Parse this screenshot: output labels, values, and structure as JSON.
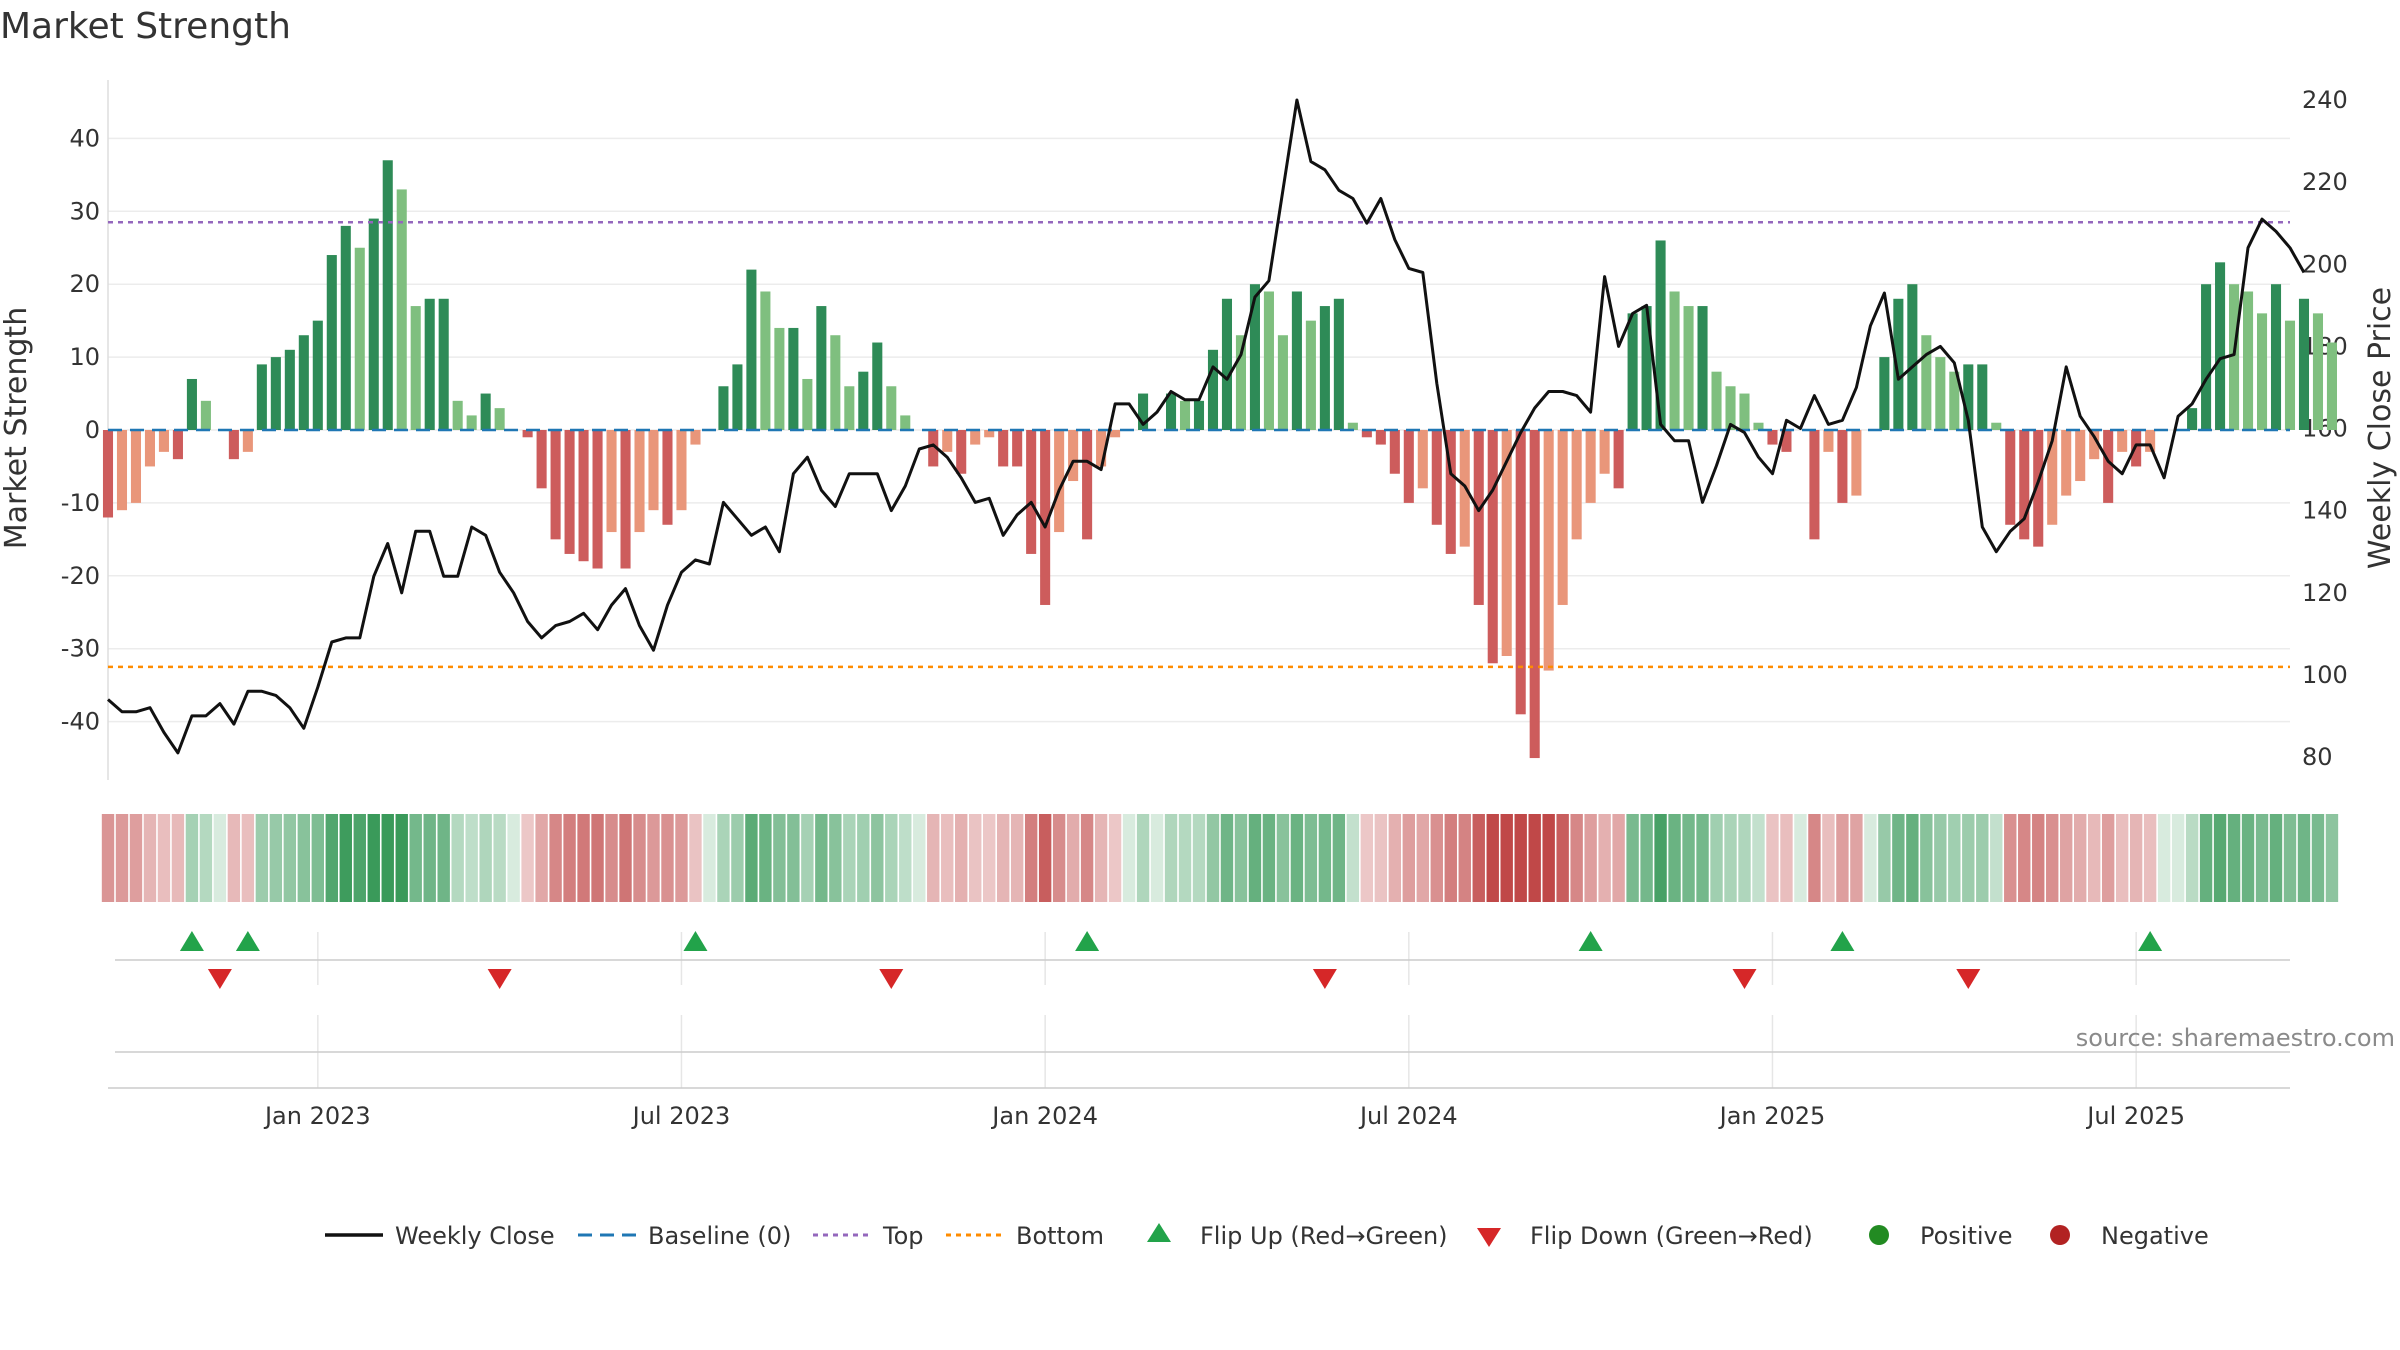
{
  "title": "Market Strength",
  "source": "source: sharemaestro.com",
  "colors": {
    "strong_green": "#2e8b57",
    "light_green": "#7fbf7f",
    "strong_red": "#cd5c5c",
    "light_red": "#e9967a",
    "close_line": "#111111",
    "baseline": "#1f77b4",
    "top": "#9467bd",
    "bottom": "#ff8c00",
    "flip_up": "#22a34a",
    "flip_down": "#d62728",
    "positive": "#228b22",
    "negative": "#b22222"
  },
  "chart_data": {
    "type": "bar+line",
    "title": "Market Strength",
    "ylabel_left": "Market Strength",
    "ylabel_right": "Weekly Close Price",
    "ylim_left": [
      -48,
      48
    ],
    "ylim_right": [
      70,
      245
    ],
    "yticks_left": [
      40,
      30,
      20,
      10,
      0,
      -10,
      -20,
      -30,
      -40
    ],
    "yticks_right": [
      240,
      220,
      200,
      180,
      160,
      140,
      120,
      100,
      80
    ],
    "x_tick_labels": [
      "Jan 2023",
      "Jul 2023",
      "Jan 2024",
      "Jul 2024",
      "Jan 2025",
      "Jul 2025"
    ],
    "x_tick_weeks": [
      15,
      41,
      67,
      93,
      119,
      145
    ],
    "top_level": 28.5,
    "bottom_level": -32.5,
    "weeks": 157,
    "strength": [
      -12,
      -11,
      -10,
      -5,
      -3,
      -4,
      7,
      4,
      0,
      -4,
      -3,
      9,
      10,
      11,
      13,
      15,
      24,
      28,
      25,
      29,
      37,
      33,
      17,
      18,
      18,
      4,
      2,
      5,
      3,
      0,
      -1,
      -8,
      -15,
      -17,
      -18,
      -19,
      -14,
      -19,
      -14,
      -11,
      -13,
      -11,
      -2,
      0,
      6,
      9,
      22,
      19,
      14,
      14,
      7,
      17,
      13,
      6,
      8,
      12,
      6,
      2,
      0,
      -5,
      -3,
      -6,
      -2,
      -1,
      -5,
      -5,
      -17,
      -24,
      -14,
      -7,
      -15,
      -5,
      -1,
      0,
      5,
      0,
      5,
      4,
      4,
      11,
      18,
      13,
      20,
      19,
      13,
      19,
      15,
      17,
      18,
      1,
      -1,
      -2,
      -6,
      -10,
      -8,
      -13,
      -17,
      -16,
      -24,
      -32,
      -31,
      -39,
      -45,
      -33,
      -24,
      -15,
      -10,
      -6,
      -8,
      16,
      17,
      26,
      19,
      17,
      17,
      8,
      6,
      5,
      1,
      -2,
      -3,
      0,
      -15,
      -3,
      -10,
      -9,
      0,
      10,
      18,
      20,
      13,
      10,
      8,
      9,
      9,
      1,
      -13,
      -15,
      -16,
      -13,
      -9,
      -7,
      -4,
      -10,
      -3,
      -5,
      -3,
      0,
      0,
      3,
      20,
      23,
      20,
      19,
      16,
      20,
      15,
      18,
      16,
      12
    ],
    "close": [
      94,
      91,
      91,
      92,
      86,
      81,
      90,
      90,
      93,
      88,
      96,
      96,
      95,
      92,
      87,
      97,
      108,
      109,
      109,
      124,
      132,
      120,
      135,
      135,
      124,
      124,
      136,
      134,
      125,
      120,
      113,
      109,
      112,
      113,
      115,
      111,
      117,
      121,
      112,
      106,
      117,
      125,
      128,
      127,
      142,
      138,
      134,
      136,
      130,
      149,
      153,
      145,
      141,
      149,
      149,
      149,
      140,
      146,
      155,
      156,
      153,
      148,
      142,
      143,
      134,
      139,
      142,
      136,
      145,
      152,
      152,
      150,
      166,
      166,
      161,
      164,
      169,
      167,
      167,
      175,
      172,
      178,
      192,
      196,
      218,
      240,
      225,
      223,
      218,
      216,
      210,
      216,
      206,
      199,
      198,
      171,
      149,
      146,
      140,
      145,
      152,
      159,
      165,
      169,
      169,
      168,
      164,
      197,
      180,
      188,
      190,
      161,
      157,
      157,
      142,
      151,
      161,
      159,
      153,
      149,
      162,
      160,
      168,
      161,
      162,
      170,
      185,
      193,
      172,
      175,
      178,
      180,
      176,
      162,
      136,
      130,
      135,
      138,
      147,
      157,
      175,
      163,
      158,
      152,
      149,
      156,
      156,
      148,
      163,
      166,
      172,
      177,
      178,
      204,
      211,
      208,
      204,
      198
    ],
    "flip_up_weeks": [
      6,
      10,
      42,
      70,
      106,
      124,
      146
    ],
    "flip_down_weeks": [
      8,
      28,
      56,
      87,
      117,
      133
    ],
    "legend": [
      "Weekly Close",
      "Baseline (0)",
      "Top",
      "Bottom",
      "Flip Up (Red→Green)",
      "Flip Down (Green→Red)",
      "Positive",
      "Negative"
    ]
  }
}
